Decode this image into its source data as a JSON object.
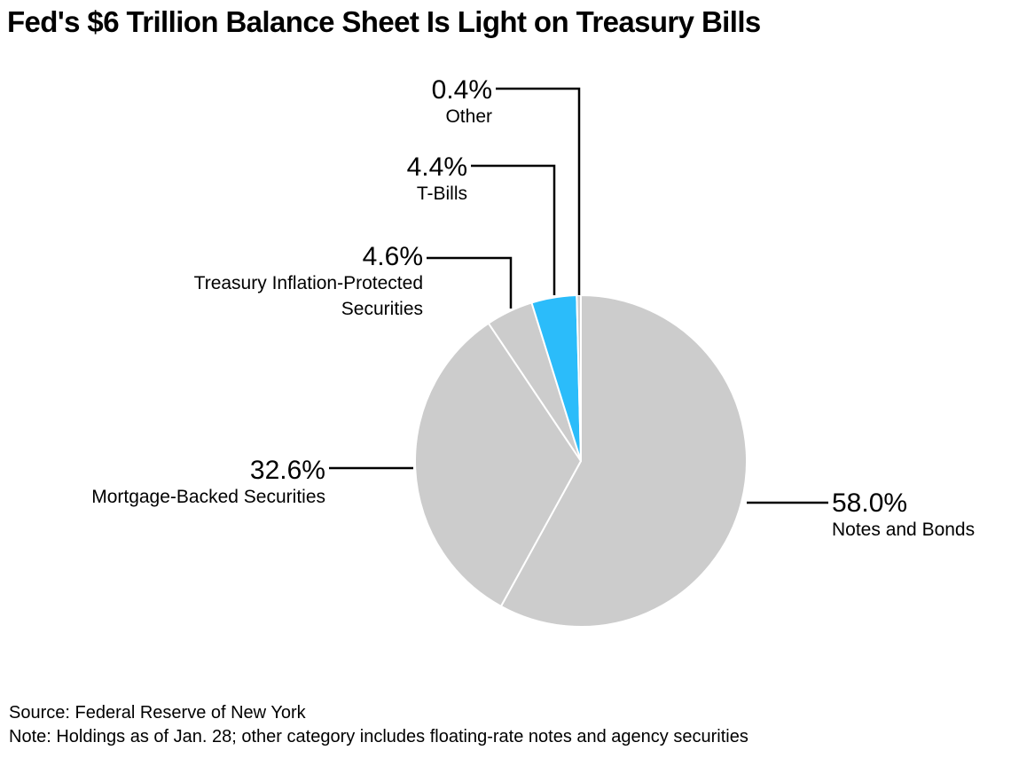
{
  "title": "Fed's $6 Trillion Balance Sheet Is Light on Treasury Bills",
  "chart_data": {
    "type": "pie",
    "title": "Fed's $6 Trillion Balance Sheet Is Light on Treasury Bills",
    "start_angle_deg": 0,
    "direction": "clockwise",
    "slices": [
      {
        "id": "notes-and-bonds",
        "label": [
          "Notes and Bonds"
        ],
        "value": 58.0,
        "value_label": "58.0%",
        "color": "#cccccc"
      },
      {
        "id": "mbs",
        "label": [
          "Mortgage-Backed Securities"
        ],
        "value": 32.6,
        "value_label": "32.6%",
        "color": "#cccccc"
      },
      {
        "id": "tips",
        "label": [
          "Treasury Inflation-Protected",
          "Securities"
        ],
        "value": 4.6,
        "value_label": "4.6%",
        "color": "#cccccc"
      },
      {
        "id": "t-bills",
        "label": [
          "T-Bills"
        ],
        "value": 4.4,
        "value_label": "4.4%",
        "color": "#2bbcfa"
      },
      {
        "id": "other",
        "label": [
          "Other"
        ],
        "value": 0.4,
        "value_label": "0.4%",
        "color": "#cccccc"
      }
    ]
  },
  "footer": {
    "source": "Source: Federal Reserve of New York",
    "note": "Note: Holdings as of Jan. 28; other category includes floating-rate notes and agency securities"
  }
}
